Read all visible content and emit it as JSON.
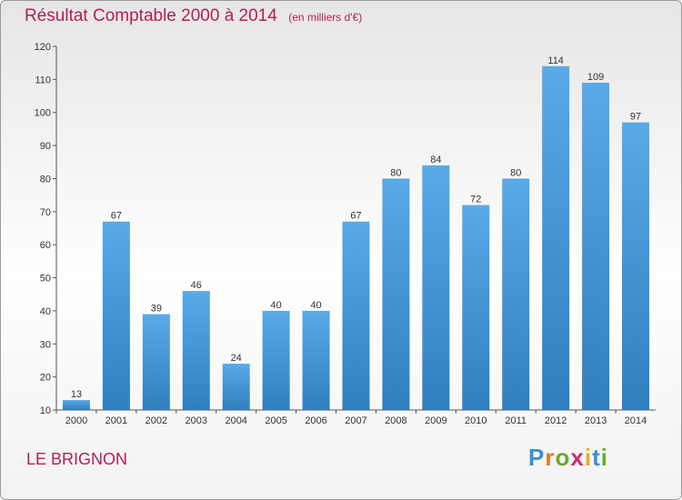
{
  "title": "Résultat Comptable 2000 à 2014",
  "unit": "(en milliers d'€)",
  "town": "LE BRIGNON",
  "logo": {
    "text": "Proxiti",
    "colors": [
      "#3b8fd6",
      "#e07b1f",
      "#6aaa2c",
      "#d12b6c",
      "#e4b21a",
      "#3b8fd6",
      "#6aaa2c"
    ]
  },
  "colors": {
    "bar_light": "#5aaae8",
    "bar_dark": "#2f7fbf",
    "title": "#b2205a"
  },
  "chart_data": {
    "type": "bar",
    "title": "Résultat Comptable 2000 à 2014",
    "subtitle": "(en milliers d'€)",
    "categories": [
      "2000",
      "2001",
      "2002",
      "2003",
      "2004",
      "2005",
      "2006",
      "2007",
      "2008",
      "2009",
      "2010",
      "2011",
      "2012",
      "2013",
      "2014"
    ],
    "values": [
      13,
      67,
      39,
      46,
      24,
      40,
      40,
      67,
      80,
      84,
      72,
      80,
      114,
      109,
      97
    ],
    "ylim": [
      10,
      120
    ],
    "yticks": [
      10,
      20,
      30,
      40,
      50,
      60,
      70,
      80,
      90,
      100,
      110,
      120
    ],
    "grid": false,
    "data_labels": true
  }
}
